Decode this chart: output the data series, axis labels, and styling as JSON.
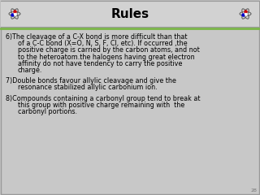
{
  "title": "Rules",
  "title_fontsize": 11,
  "title_fontweight": "bold",
  "title_color": "#000000",
  "body_bg": "#c8c8c8",
  "header_bg": "#d2d2d2",
  "border_color": "#999999",
  "accent_line_color": "#7ab648",
  "page_number": "28",
  "text_fontsize": 5.8,
  "text_color": "#000000",
  "font_family": "DejaVu Sans",
  "rules": [
    {
      "number": "6)",
      "lines": [
        "The cleavage of a C-X bond is more difficult than that",
        "of a C-C bond (X=O, N, S, F, Cl, etc). If occurred ,the",
        "positive charge is carried by the carbon atoms, and not",
        "to the heteroatom.the halogens having great electron",
        "affinity do not have tendency to carry the positive",
        "charge."
      ]
    },
    {
      "number": "7)",
      "lines": [
        "Double bonds favour allylic cleavage and give the",
        "resonance stabilized allylic carbonium ion."
      ]
    },
    {
      "number": "8)",
      "lines": [
        "Compounds containing a carbonyl group tend to break at",
        "this group with positive charge remaining with  the",
        "carbonyl portions."
      ]
    }
  ]
}
